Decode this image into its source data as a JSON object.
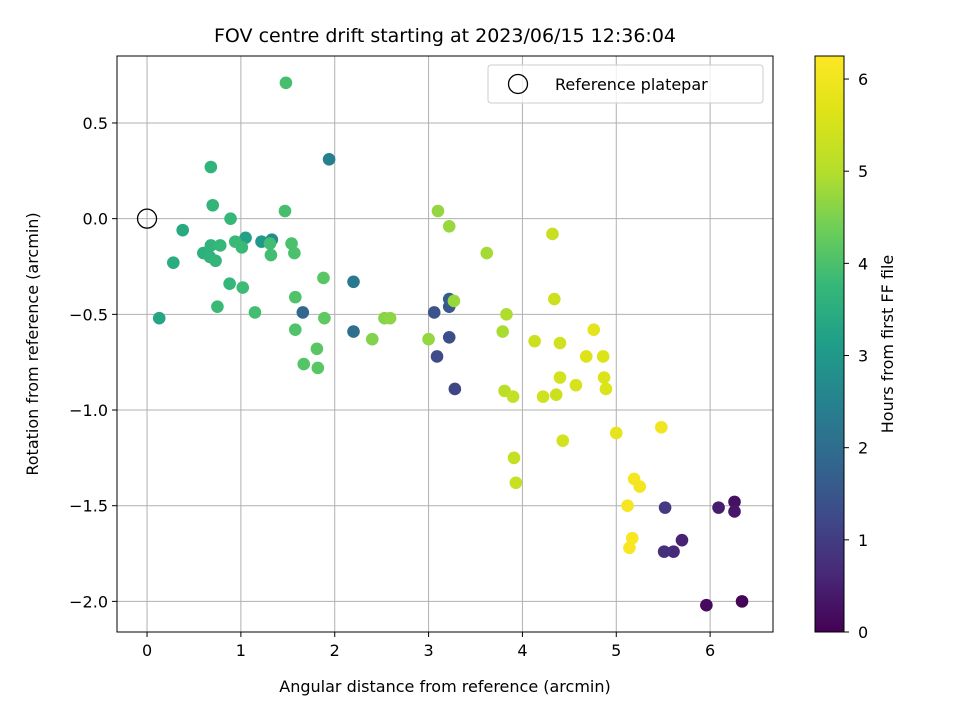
{
  "chart_data": {
    "type": "scatter",
    "title": "FOV centre drift starting at 2023/06/15 12:36:04",
    "xlabel": "Angular distance from reference (arcmin)",
    "ylabel": "Rotation from reference (arcmin)",
    "xlim": [
      -0.32,
      6.67
    ],
    "ylim": [
      -2.16,
      0.85
    ],
    "xticks": [
      0,
      1,
      2,
      3,
      4,
      5,
      6
    ],
    "xtick_labels": [
      "0",
      "1",
      "2",
      "3",
      "4",
      "5",
      "6"
    ],
    "yticks": [
      0.5,
      0.0,
      -0.5,
      -1.0,
      -1.5,
      -2.0
    ],
    "ytick_labels": [
      "0.5",
      "0.0",
      "−0.5",
      "−1.0",
      "−1.5",
      "−2.0"
    ],
    "grid": true,
    "legend": {
      "position": "top-right",
      "entries": [
        "Reference platepar"
      ]
    },
    "reference_point": {
      "x": 0,
      "y": 0,
      "label": "Reference platepar"
    },
    "colorbar": {
      "label": "Hours from first FF file",
      "colormap": "viridis",
      "range": [
        0,
        6.25
      ],
      "ticks": [
        0,
        1,
        2,
        3,
        4,
        5,
        6
      ],
      "tick_labels": [
        "0",
        "1",
        "2",
        "3",
        "4",
        "5",
        "6"
      ]
    },
    "points": [
      {
        "x": 6.34,
        "y": -2.0,
        "c": 0.05
      },
      {
        "x": 5.96,
        "y": -2.02,
        "c": 0.15
      },
      {
        "x": 6.26,
        "y": -1.48,
        "c": 0.25
      },
      {
        "x": 6.26,
        "y": -1.53,
        "c": 0.35
      },
      {
        "x": 6.09,
        "y": -1.51,
        "c": 0.45
      },
      {
        "x": 5.7,
        "y": -1.68,
        "c": 0.55
      },
      {
        "x": 5.61,
        "y": -1.74,
        "c": 0.65
      },
      {
        "x": 5.51,
        "y": -1.74,
        "c": 0.75
      },
      {
        "x": 5.52,
        "y": -1.51,
        "c": 0.95
      },
      {
        "x": 3.28,
        "y": -0.89,
        "c": 1.15
      },
      {
        "x": 3.09,
        "y": -0.72,
        "c": 1.25
      },
      {
        "x": 3.22,
        "y": -0.62,
        "c": 1.35
      },
      {
        "x": 3.06,
        "y": -0.49,
        "c": 1.45
      },
      {
        "x": 3.22,
        "y": -0.46,
        "c": 1.55
      },
      {
        "x": 3.22,
        "y": -0.42,
        "c": 1.65
      },
      {
        "x": 1.66,
        "y": -0.49,
        "c": 1.85
      },
      {
        "x": 2.2,
        "y": -0.59,
        "c": 2.05
      },
      {
        "x": 2.2,
        "y": -0.33,
        "c": 2.25
      },
      {
        "x": 1.94,
        "y": 0.31,
        "c": 2.45
      },
      {
        "x": 1.33,
        "y": -0.11,
        "c": 2.75
      },
      {
        "x": 1.22,
        "y": -0.12,
        "c": 3.0
      },
      {
        "x": 1.05,
        "y": -0.1,
        "c": 3.2
      },
      {
        "x": 0.13,
        "y": -0.52,
        "c": 3.3
      },
      {
        "x": 0.38,
        "y": -0.06,
        "c": 3.4
      },
      {
        "x": 0.28,
        "y": -0.23,
        "c": 3.5
      },
      {
        "x": 0.6,
        "y": -0.18,
        "c": 3.55
      },
      {
        "x": 0.67,
        "y": -0.2,
        "c": 3.6
      },
      {
        "x": 0.68,
        "y": -0.14,
        "c": 3.65
      },
      {
        "x": 0.73,
        "y": -0.22,
        "c": 3.7
      },
      {
        "x": 0.78,
        "y": -0.14,
        "c": 3.75
      },
      {
        "x": 0.68,
        "y": 0.27,
        "c": 3.65
      },
      {
        "x": 0.7,
        "y": 0.07,
        "c": 3.7
      },
      {
        "x": 0.89,
        "y": 0.0,
        "c": 3.75
      },
      {
        "x": 0.75,
        "y": -0.46,
        "c": 3.8
      },
      {
        "x": 0.88,
        "y": -0.34,
        "c": 3.75
      },
      {
        "x": 0.94,
        "y": -0.12,
        "c": 3.8
      },
      {
        "x": 1.01,
        "y": -0.15,
        "c": 3.8
      },
      {
        "x": 1.02,
        "y": -0.36,
        "c": 3.85
      },
      {
        "x": 1.15,
        "y": -0.49,
        "c": 3.9
      },
      {
        "x": 1.31,
        "y": -0.13,
        "c": 3.9
      },
      {
        "x": 1.32,
        "y": -0.19,
        "c": 3.9
      },
      {
        "x": 1.47,
        "y": 0.04,
        "c": 3.95
      },
      {
        "x": 1.48,
        "y": 0.71,
        "c": 3.95
      },
      {
        "x": 1.54,
        "y": -0.13,
        "c": 4.0
      },
      {
        "x": 1.57,
        "y": -0.18,
        "c": 4.0
      },
      {
        "x": 1.58,
        "y": -0.41,
        "c": 4.05
      },
      {
        "x": 1.58,
        "y": -0.58,
        "c": 4.05
      },
      {
        "x": 1.67,
        "y": -0.76,
        "c": 4.1
      },
      {
        "x": 1.81,
        "y": -0.68,
        "c": 4.15
      },
      {
        "x": 1.82,
        "y": -0.78,
        "c": 4.15
      },
      {
        "x": 1.88,
        "y": -0.31,
        "c": 4.15
      },
      {
        "x": 1.89,
        "y": -0.52,
        "c": 4.2
      },
      {
        "x": 2.4,
        "y": -0.63,
        "c": 4.55
      },
      {
        "x": 2.53,
        "y": -0.52,
        "c": 4.6
      },
      {
        "x": 2.59,
        "y": -0.52,
        "c": 4.65
      },
      {
        "x": 3.0,
        "y": -0.63,
        "c": 4.7
      },
      {
        "x": 3.1,
        "y": 0.04,
        "c": 4.7
      },
      {
        "x": 3.22,
        "y": -0.04,
        "c": 4.75
      },
      {
        "x": 3.27,
        "y": -0.43,
        "c": 4.75
      },
      {
        "x": 3.62,
        "y": -0.18,
        "c": 4.85
      },
      {
        "x": 3.79,
        "y": -0.59,
        "c": 4.9
      },
      {
        "x": 3.83,
        "y": -0.5,
        "c": 4.95
      },
      {
        "x": 3.81,
        "y": -0.9,
        "c": 5.1
      },
      {
        "x": 3.9,
        "y": -0.93,
        "c": 5.2
      },
      {
        "x": 3.91,
        "y": -1.25,
        "c": 5.25
      },
      {
        "x": 3.93,
        "y": -1.38,
        "c": 5.3
      },
      {
        "x": 4.13,
        "y": -0.64,
        "c": 5.35
      },
      {
        "x": 4.22,
        "y": -0.93,
        "c": 5.4
      },
      {
        "x": 4.32,
        "y": -0.08,
        "c": 5.3
      },
      {
        "x": 4.34,
        "y": -0.42,
        "c": 5.35
      },
      {
        "x": 4.36,
        "y": -0.92,
        "c": 5.35
      },
      {
        "x": 4.4,
        "y": -0.65,
        "c": 5.4
      },
      {
        "x": 4.4,
        "y": -0.83,
        "c": 5.45
      },
      {
        "x": 4.43,
        "y": -1.16,
        "c": 5.45
      },
      {
        "x": 4.57,
        "y": -0.87,
        "c": 5.5
      },
      {
        "x": 4.68,
        "y": -0.72,
        "c": 5.65
      },
      {
        "x": 4.76,
        "y": -0.58,
        "c": 5.75
      },
      {
        "x": 4.86,
        "y": -0.72,
        "c": 5.6
      },
      {
        "x": 4.87,
        "y": -0.83,
        "c": 5.6
      },
      {
        "x": 4.89,
        "y": -0.89,
        "c": 5.6
      },
      {
        "x": 5.0,
        "y": -1.12,
        "c": 5.8
      },
      {
        "x": 5.12,
        "y": -1.5,
        "c": 6.1
      },
      {
        "x": 5.14,
        "y": -1.72,
        "c": 6.15
      },
      {
        "x": 5.17,
        "y": -1.67,
        "c": 6.15
      },
      {
        "x": 5.19,
        "y": -1.36,
        "c": 6.1
      },
      {
        "x": 5.25,
        "y": -1.4,
        "c": 6.05
      },
      {
        "x": 5.48,
        "y": -1.09,
        "c": 6.0
      }
    ]
  }
}
